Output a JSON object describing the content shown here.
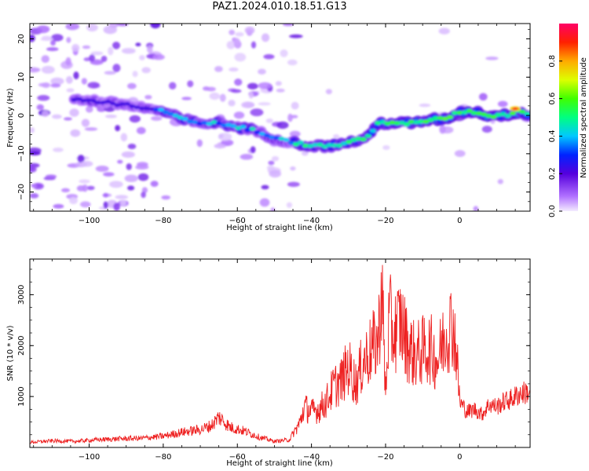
{
  "title": "PAZ1.2024.010.18.51.G13",
  "chart_data": [
    {
      "type": "heatmap",
      "xlabel": "Height of straight line (km)",
      "ylabel": "Frequency (Hz)",
      "xlim": [
        -116,
        19
      ],
      "ylim": [
        -25,
        24
      ],
      "x_ticks": [
        -100,
        -80,
        -60,
        -40,
        -20,
        0
      ],
      "y_ticks": [
        -20,
        -10,
        0,
        10,
        20
      ],
      "colorbar": {
        "label": "Normalized spectral amplitude",
        "range": [
          0.0,
          1.0
        ],
        "ticks": [
          0.0,
          0.2,
          0.4,
          0.6,
          0.8
        ],
        "colormap": "rainbow"
      },
      "ridge": {
        "x": [
          -100,
          -92,
          -85,
          -80,
          -75,
          -70,
          -65,
          -60,
          -55,
          -50,
          -45,
          -40,
          -35,
          -30,
          -25,
          -22,
          -18,
          -12,
          -8,
          -4,
          0,
          4,
          8,
          12,
          16,
          19
        ],
        "y": [
          4,
          3,
          2,
          1,
          -1,
          -2,
          -2,
          -3,
          -4,
          -6,
          -7,
          -8,
          -8,
          -7,
          -6,
          -2,
          -2,
          -2,
          -1,
          -1,
          1,
          1,
          0,
          0,
          1,
          0
        ]
      }
    },
    {
      "type": "line",
      "xlabel": "Height of straight line (km)",
      "ylabel": "SNR (10 * v/v)",
      "xlim": [
        -116,
        19
      ],
      "ylim": [
        0,
        3700
      ],
      "x_ticks": [
        -100,
        -80,
        -60,
        -40,
        -20,
        0
      ],
      "y_ticks": [
        1000,
        2000,
        3000
      ],
      "series": [
        {
          "color": "#ee2222",
          "x": [
            -116,
            -110,
            -104,
            -98,
            -92,
            -86,
            -80,
            -75,
            -70,
            -67,
            -65,
            -62,
            -58,
            -54,
            -50,
            -46,
            -43,
            -42,
            -40,
            -38,
            -36,
            -34,
            -32,
            -30,
            -28,
            -26,
            -24,
            -22,
            -21,
            -20,
            -19,
            -18,
            -16,
            -14,
            -12,
            -10,
            -8,
            -6,
            -4,
            -2,
            -1,
            0,
            2,
            4,
            6,
            8,
            10,
            12,
            14,
            16,
            19
          ],
          "y": [
            100,
            130,
            120,
            150,
            170,
            180,
            220,
            300,
            350,
            430,
            600,
            400,
            320,
            200,
            120,
            150,
            500,
            800,
            700,
            750,
            900,
            1200,
            1300,
            1600,
            1250,
            1700,
            1900,
            2100,
            3200,
            1000,
            2600,
            2200,
            2500,
            2000,
            1800,
            1900,
            1950,
            1700,
            2200,
            2450,
            2000,
            900,
            700,
            750,
            650,
            850,
            800,
            900,
            950,
            1050,
            1100
          ]
        }
      ]
    }
  ]
}
